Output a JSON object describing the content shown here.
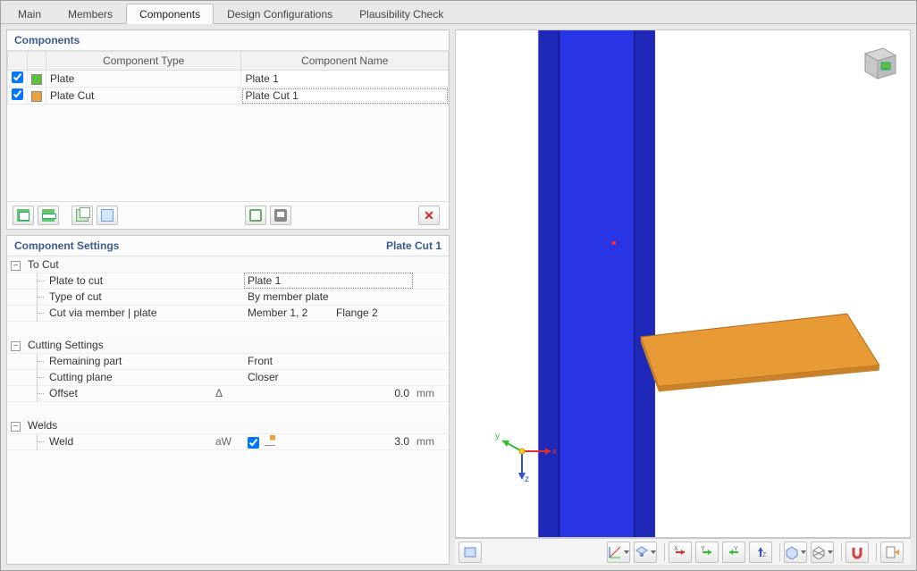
{
  "tabs": [
    "Main",
    "Members",
    "Components",
    "Design Configurations",
    "Plausibility Check"
  ],
  "active_tab_index": 2,
  "components_panel": {
    "title": "Components",
    "columns": {
      "type": "Component Type",
      "name": "Component Name"
    },
    "rows": [
      {
        "checked": true,
        "color": "#5fbf3f",
        "type": "Plate",
        "name": "Plate 1"
      },
      {
        "checked": true,
        "color": "#e9a23b",
        "type": "Plate Cut",
        "name": "Plate Cut 1"
      }
    ],
    "selected_row_index": 1
  },
  "settings_panel": {
    "title": "Component Settings",
    "subtitle": "Plate Cut 1",
    "groups": [
      {
        "title": "To Cut",
        "rows": [
          {
            "label": "Plate to cut",
            "value": "Plate 1",
            "selected": true
          },
          {
            "label": "Type of cut",
            "value": "By member plate"
          },
          {
            "label": "Cut via member | plate",
            "value": "Member 1, 2",
            "value2": "Flange 2"
          }
        ]
      },
      {
        "title": "Cutting Settings",
        "rows": [
          {
            "label": "Remaining part",
            "value": "Front"
          },
          {
            "label": "Cutting plane",
            "value": "Closer"
          },
          {
            "label": "Offset",
            "symbol": "Δ",
            "num": "0.0",
            "unit": "mm"
          }
        ]
      },
      {
        "title": "Welds",
        "rows": [
          {
            "label": "Weld",
            "symbol": "aW",
            "checked": true,
            "weld_icon": true,
            "num": "3.0",
            "unit": "mm"
          }
        ]
      }
    ]
  },
  "viewport": {
    "background": "#ffffff",
    "beam_color": "#2a36e6",
    "beam_shade": "#1f28b8",
    "plate_color": "#e89a36",
    "plate_edge": "#b06a12",
    "point_color": "#ff2a2a",
    "axes": {
      "x_color": "#e03030",
      "y_color": "#30c030",
      "z_color": "#3050e0",
      "x": "x",
      "y": "y",
      "z": "z"
    },
    "nav_cube": {
      "face": "#d6d6d6",
      "edge": "#9a9a9a",
      "accent": "#5fbf3f",
      "arrow": "#2a7"
    }
  }
}
